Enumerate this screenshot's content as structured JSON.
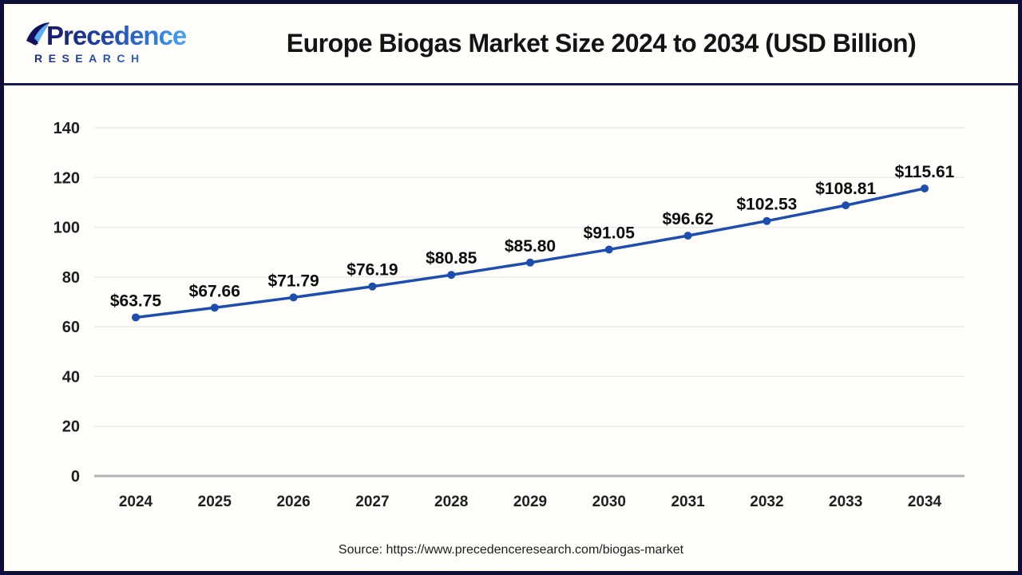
{
  "header": {
    "logo": {
      "line1": "Precedence",
      "line2": "RESEARCH",
      "icon": "sail-icon"
    },
    "title": "Europe Biogas Market Size 2024 to 2034 (USD Billion)"
  },
  "chart_data": {
    "type": "line",
    "title": "Europe Biogas Market Size 2024 to 2034 (USD Billion)",
    "categories": [
      "2024",
      "2025",
      "2026",
      "2027",
      "2028",
      "2029",
      "2030",
      "2031",
      "2032",
      "2033",
      "2034"
    ],
    "values": [
      63.75,
      67.66,
      71.79,
      76.19,
      80.85,
      85.8,
      91.05,
      96.62,
      102.53,
      108.81,
      115.61
    ],
    "point_labels": [
      "$63.75",
      "$67.66",
      "$71.79",
      "$76.19",
      "$80.85",
      "$85.80",
      "$91.05",
      "$96.62",
      "$102.53",
      "$108.81",
      "$115.61"
    ],
    "yticks": [
      0,
      20,
      40,
      60,
      80,
      100,
      120,
      140
    ],
    "ylim": [
      0,
      140
    ],
    "xlabel": "",
    "ylabel": "",
    "grid": true,
    "legend": "none",
    "line_color": "#1d4eae",
    "marker": "circle",
    "grid_color": "#eaeaea",
    "baseline_color": "#b3b3b3",
    "label_color": "#0d0d0d",
    "tick_color": "#1f1f1f"
  },
  "footer": {
    "source": "Source: https://www.precedenceresearch.com/biogas-market"
  }
}
